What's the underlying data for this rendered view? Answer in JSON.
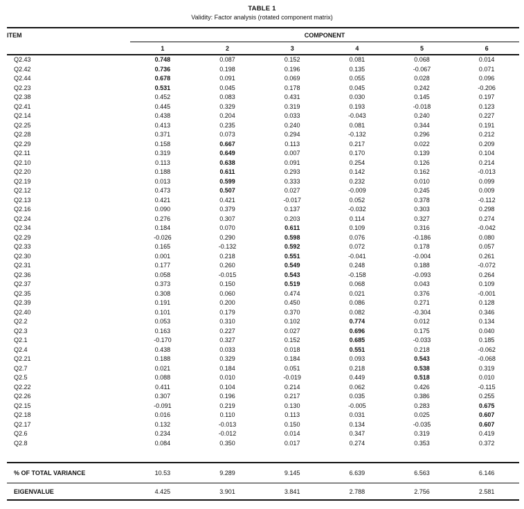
{
  "title": "TABLE 1",
  "subtitle": "Validity: Factor analysis (rotated component matrix)",
  "table": {
    "item_header": "ITEM",
    "component_header": "COMPONENT",
    "component_columns": [
      "1",
      "2",
      "3",
      "4",
      "5",
      "6"
    ],
    "rows": [
      {
        "item": "Q2.43",
        "values": [
          "0.748",
          "0.087",
          "0.152",
          "0.081",
          "0.068",
          "0.014"
        ],
        "bold": 0
      },
      {
        "item": "Q2.42",
        "values": [
          "0.736",
          "0.198",
          "0.196",
          "0.135",
          "-0.067",
          "0.071"
        ],
        "bold": 0
      },
      {
        "item": "Q2.44",
        "values": [
          "0.678",
          "0.091",
          "0.069",
          "0.055",
          "0.028",
          "0.096"
        ],
        "bold": 0
      },
      {
        "item": "Q2.23",
        "values": [
          "0.531",
          "0.045",
          "0.178",
          "0.045",
          "0.242",
          "-0.206"
        ],
        "bold": 0
      },
      {
        "item": "Q2.38",
        "values": [
          "0.452",
          "0.083",
          "0.431",
          "0.030",
          "0.145",
          "0.197"
        ],
        "bold": -1
      },
      {
        "item": "Q2.41",
        "values": [
          "0.445",
          "0.329",
          "0.319",
          "0.193",
          "-0.018",
          "0.123"
        ],
        "bold": -1
      },
      {
        "item": "Q2.14",
        "values": [
          "0.438",
          "0.204",
          "0.033",
          "-0.043",
          "0.240",
          "0.227"
        ],
        "bold": -1
      },
      {
        "item": "Q2.25",
        "values": [
          "0.413",
          "0.235",
          "0.240",
          "0.081",
          "0.344",
          "0.191"
        ],
        "bold": -1
      },
      {
        "item": "Q2.28",
        "values": [
          "0.371",
          "0.073",
          "0.294",
          "-0.132",
          "0.296",
          "0.212"
        ],
        "bold": -1
      },
      {
        "item": "Q2.29",
        "values": [
          "0.158",
          "0.667",
          "0.113",
          "0.217",
          "0.022",
          "0.209"
        ],
        "bold": 1
      },
      {
        "item": "Q2.11",
        "values": [
          "0.319",
          "0.649",
          "0.007",
          "0.170",
          "0.139",
          "0.104"
        ],
        "bold": 1
      },
      {
        "item": "Q2.10",
        "values": [
          "0.113",
          "0.638",
          "0.091",
          "0.254",
          "0.126",
          "0.214"
        ],
        "bold": 1
      },
      {
        "item": "Q2.20",
        "values": [
          "0.188",
          "0.611",
          "0.293",
          "0.142",
          "0.162",
          "-0.013"
        ],
        "bold": 1
      },
      {
        "item": "Q2.19",
        "values": [
          "0.013",
          "0.599",
          "0.333",
          "0.232",
          "0.010",
          "0.099"
        ],
        "bold": 1
      },
      {
        "item": "Q2.12",
        "values": [
          "0.473",
          "0.507",
          "0.027",
          "-0.009",
          "0.245",
          "0.009"
        ],
        "bold": 1
      },
      {
        "item": "Q2.13",
        "values": [
          "0.421",
          "0.421",
          "-0.017",
          "0.052",
          "0.378",
          "-0.112"
        ],
        "bold": -1
      },
      {
        "item": "Q2.16",
        "values": [
          "0.090",
          "0.379",
          "0.137",
          "-0.032",
          "0.303",
          "0.298"
        ],
        "bold": -1
      },
      {
        "item": "Q2.24",
        "values": [
          "0.276",
          "0.307",
          "0.203",
          "0.114",
          "0.327",
          "0.274"
        ],
        "bold": -1
      },
      {
        "item": "Q2.34",
        "values": [
          "0.184",
          "0.070",
          "0.611",
          "0.109",
          "0.316",
          "-0.042"
        ],
        "bold": 2
      },
      {
        "item": "Q2.29",
        "values": [
          "-0.026",
          "0.290",
          "0.598",
          "0.076",
          "-0.186",
          "0.080"
        ],
        "bold": 2
      },
      {
        "item": "Q2.33",
        "values": [
          "0.165",
          "-0.132",
          "0.592",
          "0.072",
          "0.178",
          "0.057"
        ],
        "bold": 2
      },
      {
        "item": "Q2.30",
        "values": [
          "0.001",
          "0.218",
          "0.551",
          "-0.041",
          "-0.004",
          "0.261"
        ],
        "bold": 2
      },
      {
        "item": "Q2.31",
        "values": [
          "0.177",
          "0.260",
          "0.549",
          "0.248",
          "0.188",
          "-0.072"
        ],
        "bold": 2
      },
      {
        "item": "Q2.36",
        "values": [
          "0.058",
          "-0.015",
          "0.543",
          "-0.158",
          "-0.093",
          "0.264"
        ],
        "bold": 2
      },
      {
        "item": "Q2.37",
        "values": [
          "0.373",
          "0.150",
          "0.519",
          "0.068",
          "0.043",
          "0.109"
        ],
        "bold": 2
      },
      {
        "item": "Q2.35",
        "values": [
          "0.308",
          "0.060",
          "0.474",
          "0.021",
          "0.376",
          "-0.001"
        ],
        "bold": -1
      },
      {
        "item": "Q2.39",
        "values": [
          "0.191",
          "0.200",
          "0.450",
          "0.086",
          "0.271",
          "0.128"
        ],
        "bold": -1
      },
      {
        "item": "Q2.40",
        "values": [
          "0.101",
          "0.179",
          "0.370",
          "0.082",
          "-0.304",
          "0.346"
        ],
        "bold": -1
      },
      {
        "item": "Q2.2",
        "values": [
          "0.053",
          "0.310",
          "0.102",
          "0.774",
          "0.012",
          "0.134"
        ],
        "bold": 3
      },
      {
        "item": "Q2.3",
        "values": [
          "0.163",
          "0.227",
          "0.027",
          "0.696",
          "0.175",
          "0.040"
        ],
        "bold": 3
      },
      {
        "item": "Q2.1",
        "values": [
          "-0.170",
          "0.327",
          "0.152",
          "0.685",
          "-0.033",
          "0.185"
        ],
        "bold": 3
      },
      {
        "item": "Q2.4",
        "values": [
          "0.438",
          "0.033",
          "0.018",
          "0.551",
          "0.218",
          "-0.062"
        ],
        "bold": 3
      },
      {
        "item": "Q2.21",
        "values": [
          "0.188",
          "0.329",
          "0.184",
          "0.093",
          "0.543",
          "-0.068"
        ],
        "bold": 4
      },
      {
        "item": "Q2.7",
        "values": [
          "0.021",
          "0.184",
          "0.051",
          "0.218",
          "0.538",
          "0.319"
        ],
        "bold": 4
      },
      {
        "item": "Q2.5",
        "values": [
          "0.088",
          "0.010",
          "-0.019",
          "0.449",
          "0.518",
          "0.010"
        ],
        "bold": 4
      },
      {
        "item": "Q2.22",
        "values": [
          "0.411",
          "0.104",
          "0.214",
          "0.062",
          "0.426",
          "-0.115"
        ],
        "bold": -1
      },
      {
        "item": "Q2.26",
        "values": [
          "0.307",
          "0.196",
          "0.217",
          "0.035",
          "0.386",
          "0.255"
        ],
        "bold": -1
      },
      {
        "item": "Q2.15",
        "values": [
          "-0.091",
          "0.219",
          "0.130",
          "-0.005",
          "0.283",
          "0.675"
        ],
        "bold": 5
      },
      {
        "item": "Q2.18",
        "values": [
          "0.016",
          "0.110",
          "0.113",
          "0.031",
          "0.025",
          "0.607"
        ],
        "bold": 5
      },
      {
        "item": "Q2.17",
        "values": [
          "0.132",
          "-0.013",
          "0.150",
          "0.134",
          "-0.035",
          "0.607"
        ],
        "bold": 5
      },
      {
        "item": "Q2.6",
        "values": [
          "0.234",
          "-0.012",
          "0.014",
          "0.347",
          "0.319",
          "0.419"
        ],
        "bold": -1
      },
      {
        "item": "Q2.8",
        "values": [
          "0.084",
          "0.350",
          "0.017",
          "0.274",
          "0.353",
          "0.372"
        ],
        "bold": -1
      }
    ],
    "footer_rows": [
      {
        "label": "% OF TOTAL VARIANCE",
        "values": [
          "10.53",
          "9.289",
          "9.145",
          "6.639",
          "6.563",
          "6.146"
        ]
      },
      {
        "label": "EIGENVALUE",
        "values": [
          "4.425",
          "3.901",
          "3.841",
          "2.788",
          "2.756",
          "2.581"
        ]
      }
    ]
  }
}
